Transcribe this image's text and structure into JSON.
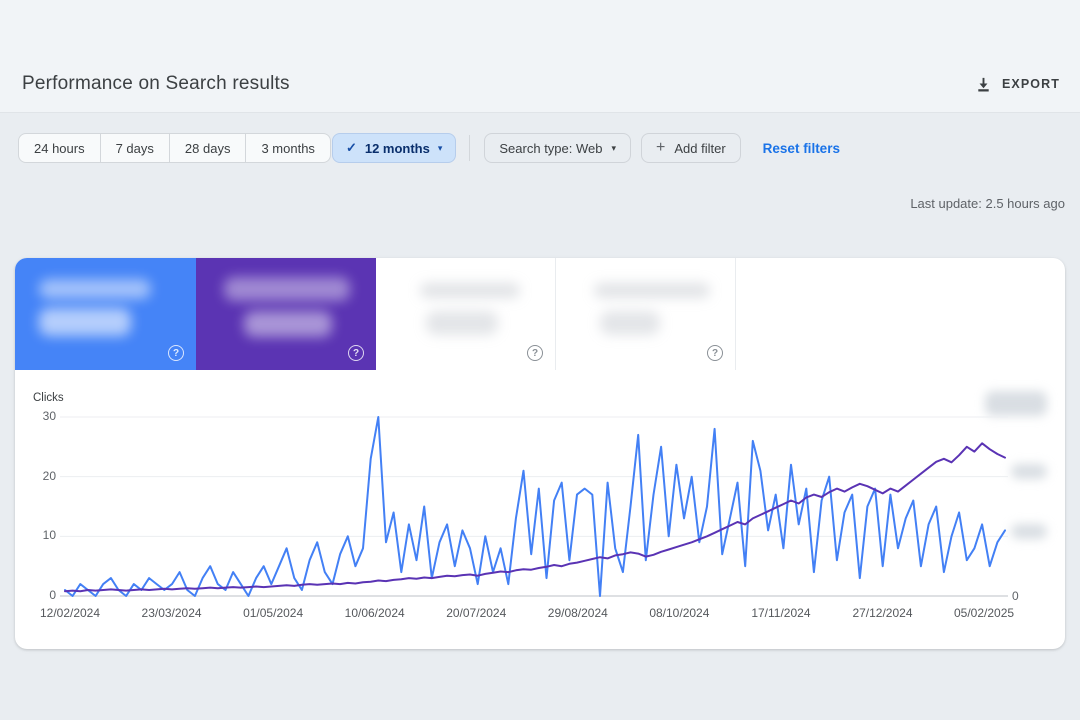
{
  "header": {
    "title": "Performance on Search results",
    "export_label": "EXPORT"
  },
  "filters": {
    "date_ranges": [
      "24 hours",
      "7 days",
      "28 days",
      "3 months"
    ],
    "selected_range": "12 months",
    "search_type_label": "Search type: Web",
    "add_filter_label": "Add filter",
    "reset_filters_label": "Reset filters",
    "last_update": "Last update: 2.5 hours ago"
  },
  "icons": {
    "check": "✓",
    "caret_down": "▾",
    "plus": "+",
    "help": "?"
  },
  "cards": {
    "note": "card titles and values are blurred in the screenshot",
    "colors": {
      "card1": "#4584f7",
      "card2": "#5b34b3",
      "card3": "#ffffff",
      "card4": "#ffffff"
    }
  },
  "chart_data": {
    "type": "line",
    "title": "",
    "ylabel": "Clicks",
    "xlabel": "",
    "ylim": [
      0,
      30
    ],
    "y_ticks": [
      0,
      10,
      20,
      30
    ],
    "right_axis_zero_label": "0",
    "right_axis_labels_blurred": true,
    "grid": "horizontal",
    "legend_position": "none",
    "x_tick_labels": [
      "12/02/2024",
      "23/03/2024",
      "01/05/2024",
      "10/06/2024",
      "20/07/2024",
      "29/08/2024",
      "08/10/2024",
      "17/11/2024",
      "27/12/2024",
      "05/02/2025"
    ],
    "series": [
      {
        "name": "Clicks",
        "color": "#4380f5",
        "values": [
          1,
          0,
          2,
          1,
          0,
          2,
          3,
          1,
          0,
          2,
          1,
          3,
          2,
          1,
          2,
          4,
          1,
          0,
          3,
          5,
          2,
          1,
          4,
          2,
          0,
          3,
          5,
          2,
          5,
          8,
          3,
          1,
          6,
          9,
          4,
          2,
          7,
          10,
          5,
          8,
          23,
          30,
          9,
          14,
          4,
          12,
          6,
          15,
          3,
          9,
          12,
          5,
          11,
          8,
          2,
          10,
          4,
          8,
          2,
          13,
          21,
          7,
          18,
          3,
          16,
          19,
          6,
          17,
          18,
          17,
          0,
          19,
          8,
          4,
          15,
          27,
          6,
          17,
          25,
          10,
          22,
          13,
          20,
          9,
          15,
          28,
          7,
          13,
          19,
          5,
          26,
          21,
          11,
          17,
          8,
          22,
          12,
          18,
          4,
          16,
          20,
          6,
          14,
          17,
          3,
          15,
          18,
          5,
          17,
          8,
          13,
          16,
          5,
          12,
          15,
          4,
          10,
          14,
          6,
          8,
          12,
          5,
          9,
          11
        ]
      },
      {
        "name": "Purple series (right-axis values blurred)",
        "color": "#5a33b4",
        "values": [
          0.8,
          0.9,
          0.8,
          1,
          0.9,
          1,
          1.1,
          1,
          0.9,
          1,
          1.1,
          1,
          1.1,
          1.2,
          1.1,
          1.2,
          1.3,
          1.2,
          1.3,
          1.4,
          1.3,
          1.4,
          1.5,
          1.4,
          1.5,
          1.6,
          1.5,
          1.6,
          1.7,
          1.8,
          1.7,
          1.9,
          2,
          1.9,
          2,
          2.1,
          2,
          2.2,
          2.1,
          2.3,
          2.4,
          2.6,
          2.5,
          2.7,
          2.8,
          3,
          2.9,
          3.1,
          3,
          3.2,
          3.4,
          3.3,
          3.5,
          3.6,
          3.4,
          3.7,
          3.9,
          4.1,
          4,
          4.3,
          4.5,
          4.4,
          4.7,
          4.9,
          5.2,
          5,
          5.4,
          5.6,
          5.9,
          6.2,
          6.5,
          6.3,
          6.8,
          7,
          7.3,
          7.1,
          6.6,
          6.9,
          7.4,
          7.8,
          8.2,
          8.6,
          9,
          9.5,
          10,
          10.6,
          11.2,
          11.8,
          12.4,
          12,
          13,
          13.6,
          14.2,
          14.8,
          15.4,
          16,
          15.5,
          16.5,
          17,
          16.6,
          17.4,
          18,
          17.5,
          18.2,
          18.8,
          18.4,
          17.8,
          17.2,
          18,
          17.5,
          18.5,
          19.5,
          20.5,
          21.5,
          22.5,
          23,
          22.4,
          23.6,
          25,
          24.2,
          25.6,
          24.6,
          23.8,
          23.2
        ]
      }
    ]
  }
}
